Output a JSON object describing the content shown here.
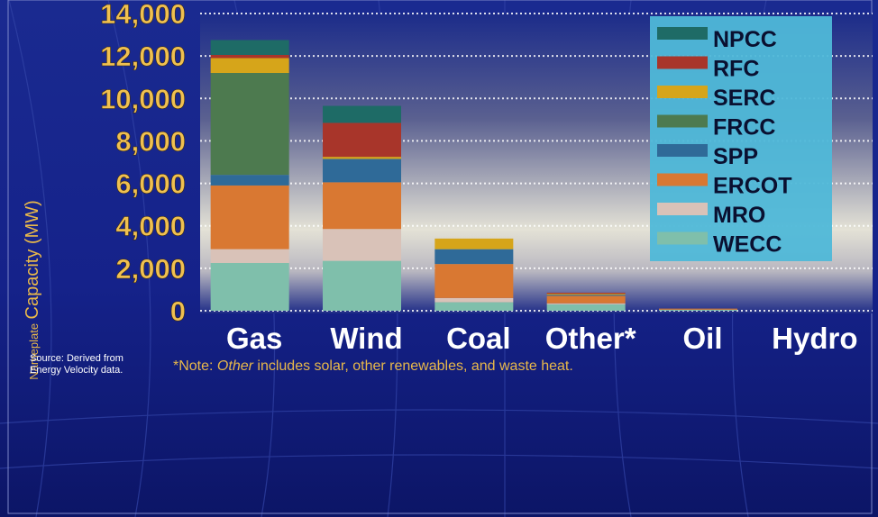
{
  "chart_data": {
    "type": "bar",
    "stacked": true,
    "categories": [
      "Gas",
      "Wind",
      "Coal",
      "Other*",
      "Oil",
      "Hydro"
    ],
    "series": [
      {
        "name": "WECC",
        "color": "#7fbfab",
        "values": [
          2250,
          2350,
          400,
          300,
          50,
          0
        ]
      },
      {
        "name": "MRO",
        "color": "#d9c2b8",
        "values": [
          650,
          1500,
          200,
          50,
          0,
          0
        ]
      },
      {
        "name": "ERCOT",
        "color": "#d97832",
        "values": [
          3000,
          2200,
          1600,
          350,
          50,
          0
        ]
      },
      {
        "name": "SPP",
        "color": "#2f6a98",
        "values": [
          500,
          1100,
          700,
          50,
          0,
          0
        ]
      },
      {
        "name": "FRCC",
        "color": "#4d7a4f",
        "values": [
          4800,
          0,
          0,
          0,
          0,
          0
        ]
      },
      {
        "name": "SERC",
        "color": "#d6a51a",
        "values": [
          700,
          100,
          500,
          50,
          0,
          0
        ]
      },
      {
        "name": "RFC",
        "color": "#a8352a",
        "values": [
          150,
          1600,
          0,
          50,
          0,
          0
        ]
      },
      {
        "name": "NPCC",
        "color": "#1e6b66",
        "values": [
          700,
          800,
          0,
          0,
          0,
          0
        ]
      }
    ],
    "ylim": [
      0,
      14000
    ],
    "yticks": [
      "0",
      "2,000",
      "4,000",
      "6,000",
      "8,000",
      "10,000",
      "12,000",
      "14,000"
    ],
    "ylabel_small": "Nameplate",
    "ylabel_big": "Capacity (MW)",
    "grid": true,
    "legend_position": "top-right"
  },
  "source_line1": "Source: Derived from",
  "source_line2": "Energy Velocity data.",
  "note_prefix": "*Note: ",
  "note_italic": "Other",
  "note_rest": " includes solar, other renewables, and waste heat."
}
